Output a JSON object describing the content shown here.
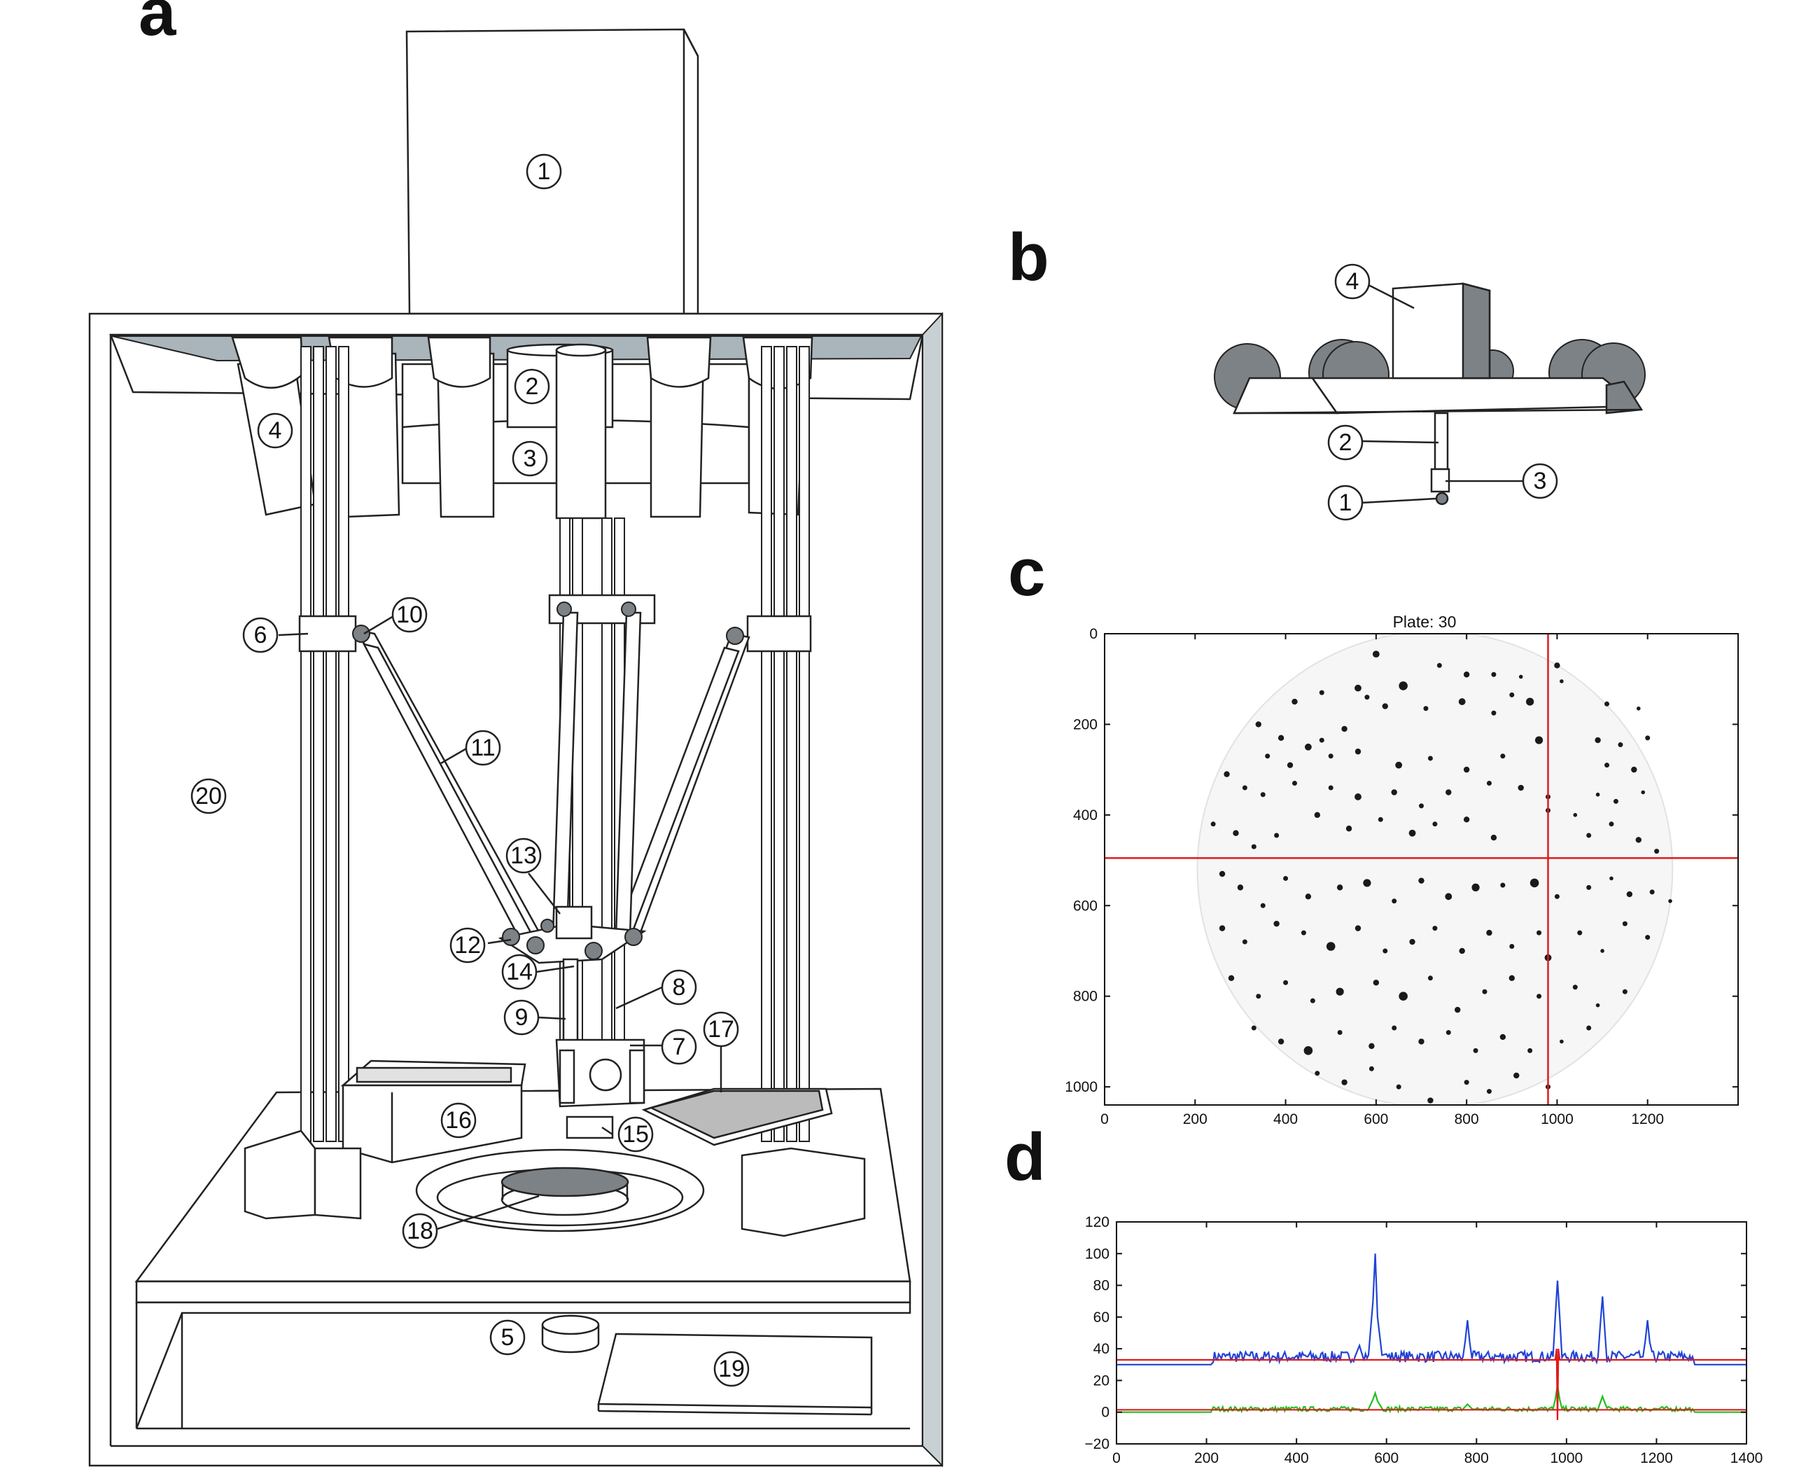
{
  "panels": {
    "a": {
      "letter": "a"
    },
    "b": {
      "letter": "b"
    },
    "c": {
      "letter": "c"
    },
    "d": {
      "letter": "d"
    }
  },
  "callouts_a": [
    "1",
    "2",
    "3",
    "4",
    "5",
    "6",
    "7",
    "8",
    "9",
    "10",
    "11",
    "12",
    "13",
    "14",
    "15",
    "16",
    "17",
    "18",
    "19",
    "20"
  ],
  "callouts_b": [
    "1",
    "2",
    "3",
    "4"
  ],
  "colors": {
    "outline": "#222222",
    "ceiling_grey": "#a9b4bb",
    "sphere_grey": "#7d8286",
    "crosshair_red": "#e01a1a",
    "blue_trace": "#1f44d6",
    "green_trace": "#1fbf1f",
    "red_trace": "#e01a1a"
  },
  "chart_data": [
    {
      "type": "heatmap",
      "title": "Plate: 30",
      "xlabel": "",
      "ylabel": "",
      "xlim": [
        0,
        1400
      ],
      "ylim": [
        1040,
        0
      ],
      "xticks": [
        0,
        200,
        400,
        600,
        800,
        1000,
        1200
      ],
      "yticks": [
        0,
        200,
        400,
        600,
        800,
        1000
      ],
      "crosshair": {
        "x": 980,
        "y": 495
      },
      "plate_circle": {
        "cx": 730,
        "cy": 520,
        "r": 525
      },
      "colonies": [
        [
          600,
          45,
          7
        ],
        [
          740,
          70,
          5
        ],
        [
          800,
          90,
          6
        ],
        [
          860,
          90,
          5
        ],
        [
          920,
          95,
          4
        ],
        [
          1000,
          70,
          6
        ],
        [
          660,
          115,
          9
        ],
        [
          560,
          120,
          7
        ],
        [
          480,
          130,
          5
        ],
        [
          420,
          150,
          6
        ],
        [
          900,
          135,
          5
        ],
        [
          1010,
          105,
          4
        ],
        [
          580,
          140,
          5
        ],
        [
          620,
          160,
          6
        ],
        [
          710,
          165,
          5
        ],
        [
          790,
          150,
          7
        ],
        [
          860,
          175,
          5
        ],
        [
          940,
          150,
          8
        ],
        [
          1110,
          155,
          5
        ],
        [
          1180,
          165,
          4
        ],
        [
          340,
          200,
          6
        ],
        [
          390,
          230,
          6
        ],
        [
          450,
          250,
          7
        ],
        [
          480,
          235,
          5
        ],
        [
          530,
          210,
          6
        ],
        [
          360,
          270,
          5
        ],
        [
          410,
          290,
          6
        ],
        [
          500,
          270,
          5
        ],
        [
          560,
          260,
          6
        ],
        [
          650,
          290,
          7
        ],
        [
          720,
          275,
          5
        ],
        [
          800,
          300,
          6
        ],
        [
          880,
          270,
          5
        ],
        [
          960,
          235,
          8
        ],
        [
          1090,
          235,
          6
        ],
        [
          1140,
          245,
          5
        ],
        [
          1200,
          230,
          5
        ],
        [
          1110,
          290,
          5
        ],
        [
          1170,
          300,
          6
        ],
        [
          270,
          310,
          6
        ],
        [
          310,
          340,
          5
        ],
        [
          350,
          355,
          5
        ],
        [
          420,
          330,
          5
        ],
        [
          500,
          340,
          5
        ],
        [
          560,
          360,
          7
        ],
        [
          640,
          350,
          6
        ],
        [
          700,
          380,
          5
        ],
        [
          760,
          350,
          6
        ],
        [
          850,
          330,
          5
        ],
        [
          920,
          340,
          6
        ],
        [
          980,
          360,
          5
        ],
        [
          1090,
          355,
          4
        ],
        [
          1130,
          370,
          5
        ],
        [
          1190,
          350,
          4
        ],
        [
          240,
          420,
          5
        ],
        [
          290,
          440,
          6
        ],
        [
          330,
          470,
          5
        ],
        [
          380,
          445,
          5
        ],
        [
          470,
          400,
          6
        ],
        [
          540,
          430,
          6
        ],
        [
          610,
          410,
          5
        ],
        [
          680,
          440,
          7
        ],
        [
          730,
          420,
          5
        ],
        [
          800,
          410,
          6
        ],
        [
          860,
          450,
          6
        ],
        [
          980,
          390,
          5
        ],
        [
          1040,
          400,
          4
        ],
        [
          1070,
          445,
          5
        ],
        [
          1120,
          420,
          5
        ],
        [
          1180,
          455,
          6
        ],
        [
          1220,
          480,
          5
        ],
        [
          260,
          530,
          6
        ],
        [
          300,
          560,
          6
        ],
        [
          350,
          600,
          5
        ],
        [
          400,
          540,
          5
        ],
        [
          450,
          580,
          6
        ],
        [
          520,
          560,
          6
        ],
        [
          580,
          550,
          8
        ],
        [
          640,
          590,
          5
        ],
        [
          700,
          545,
          6
        ],
        [
          760,
          580,
          7
        ],
        [
          820,
          560,
          8
        ],
        [
          880,
          555,
          5
        ],
        [
          950,
          550,
          9
        ],
        [
          1000,
          580,
          5
        ],
        [
          1070,
          560,
          5
        ],
        [
          1120,
          540,
          4
        ],
        [
          1160,
          575,
          6
        ],
        [
          1210,
          570,
          5
        ],
        [
          1250,
          590,
          4
        ],
        [
          260,
          650,
          6
        ],
        [
          310,
          680,
          5
        ],
        [
          380,
          640,
          6
        ],
        [
          440,
          660,
          5
        ],
        [
          500,
          690,
          9
        ],
        [
          560,
          650,
          6
        ],
        [
          620,
          700,
          5
        ],
        [
          680,
          680,
          6
        ],
        [
          730,
          650,
          5
        ],
        [
          790,
          700,
          6
        ],
        [
          850,
          660,
          6
        ],
        [
          900,
          690,
          5
        ],
        [
          960,
          660,
          5
        ],
        [
          980,
          715,
          7
        ],
        [
          1050,
          660,
          5
        ],
        [
          1100,
          700,
          4
        ],
        [
          1150,
          640,
          5
        ],
        [
          1200,
          670,
          5
        ],
        [
          280,
          760,
          6
        ],
        [
          340,
          800,
          5
        ],
        [
          400,
          770,
          5
        ],
        [
          460,
          810,
          5
        ],
        [
          520,
          790,
          8
        ],
        [
          600,
          770,
          6
        ],
        [
          660,
          800,
          9
        ],
        [
          720,
          760,
          5
        ],
        [
          780,
          830,
          6
        ],
        [
          840,
          790,
          5
        ],
        [
          900,
          760,
          6
        ],
        [
          960,
          800,
          5
        ],
        [
          1040,
          780,
          5
        ],
        [
          1090,
          820,
          4
        ],
        [
          1150,
          790,
          5
        ],
        [
          330,
          870,
          5
        ],
        [
          390,
          900,
          6
        ],
        [
          450,
          920,
          9
        ],
        [
          520,
          880,
          5
        ],
        [
          590,
          910,
          6
        ],
        [
          640,
          870,
          5
        ],
        [
          700,
          900,
          6
        ],
        [
          760,
          880,
          5
        ],
        [
          820,
          920,
          5
        ],
        [
          880,
          890,
          6
        ],
        [
          940,
          920,
          5
        ],
        [
          1010,
          900,
          4
        ],
        [
          1070,
          870,
          5
        ],
        [
          470,
          970,
          5
        ],
        [
          530,
          990,
          6
        ],
        [
          590,
          960,
          5
        ],
        [
          650,
          1000,
          5
        ],
        [
          720,
          1030,
          6
        ],
        [
          800,
          990,
          5
        ],
        [
          850,
          1010,
          5
        ],
        [
          910,
          975,
          6
        ],
        [
          980,
          1000,
          5
        ]
      ]
    },
    {
      "type": "line",
      "title": "",
      "xlabel": "",
      "ylabel": "",
      "xlim": [
        0,
        1400
      ],
      "ylim": [
        -20,
        120
      ],
      "xticks": [
        0,
        200,
        400,
        600,
        800,
        1000,
        1200,
        1400
      ],
      "yticks": [
        -20,
        0,
        20,
        40,
        60,
        80,
        100,
        120
      ],
      "series": [
        {
          "color": "blue",
          "x": [
            0,
            210,
            215,
            530,
            540,
            550,
            560,
            570,
            575,
            580,
            590,
            600,
            770,
            775,
            780,
            785,
            790,
            970,
            975,
            980,
            985,
            990,
            1000,
            1070,
            1075,
            1080,
            1085,
            1090,
            1170,
            1175,
            1180,
            1185,
            1190,
            1280,
            1285,
            1400
          ],
          "y": [
            30,
            30,
            35,
            35,
            42,
            36,
            36,
            70,
            100,
            60,
            36,
            35,
            35,
            45,
            58,
            44,
            35,
            35,
            60,
            83,
            60,
            35,
            35,
            35,
            55,
            73,
            52,
            35,
            35,
            45,
            58,
            44,
            35,
            35,
            30,
            30
          ]
        },
        {
          "color": "green",
          "x": [
            0,
            210,
            215,
            560,
            570,
            575,
            580,
            590,
            770,
            780,
            790,
            970,
            975,
            980,
            985,
            990,
            1070,
            1075,
            1080,
            1085,
            1090,
            1280,
            1285,
            1400
          ],
          "y": [
            0,
            0,
            2,
            2,
            8,
            12,
            7,
            2,
            2,
            5,
            2,
            2,
            8,
            17,
            8,
            2,
            2,
            6,
            10,
            6,
            2,
            2,
            0,
            0
          ]
        },
        {
          "color": "red",
          "x": [
            0,
            975,
            978,
            980,
            982,
            985,
            1400
          ],
          "y": [
            33,
            33,
            40,
            -5,
            40,
            33,
            33
          ]
        },
        {
          "color": "red",
          "x": [
            0,
            1400
          ],
          "y": [
            1.5,
            1.5
          ]
        }
      ]
    }
  ]
}
